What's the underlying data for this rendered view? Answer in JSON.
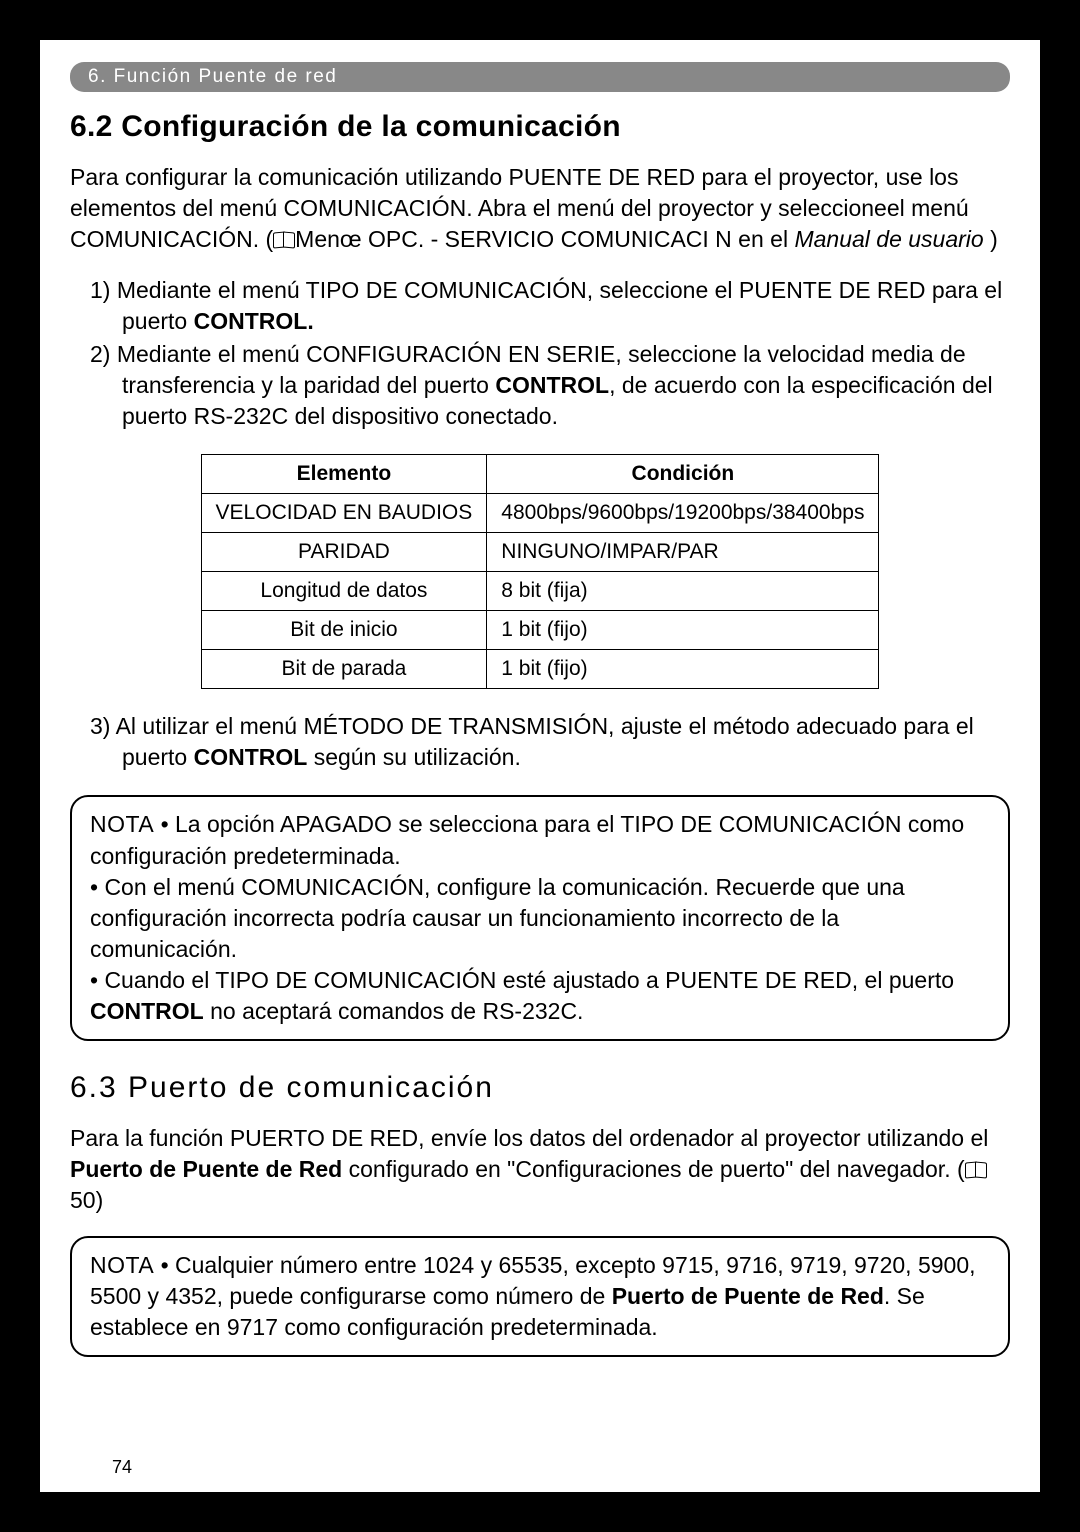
{
  "header": {
    "breadcrumb": "6. Función Puente de red"
  },
  "section62": {
    "title": "6.2 Configuración de la comunicación",
    "intro_before_icon": "Para configurar la comunicación utilizando PUENTE DE RED para el proyector, use los elementos del menú COMUNICACIÓN. Abra el menú del proyector y seleccioneel menú COMUNICACIÓN. (",
    "intro_after_icon": "Menœ OPC. - SERVICIO  COMUNICACI N en el ",
    "intro_manual": "Manual de usuario",
    "intro_close": "     )",
    "list": [
      {
        "num": "1)",
        "pre": "Mediante el menú TIPO DE COMUNICACIÓN, seleccione el PUENTE DE RED para el puerto ",
        "bold": "CONTROL.",
        "post": ""
      },
      {
        "num": "2)",
        "pre": "Mediante el menú CONFIGURACIÓN EN SERIE, seleccione la velocidad media de transferencia y la paridad del puerto ",
        "bold": "CONTROL",
        "post": ", de acuerdo con la especificación del puerto RS-232C del dispositivo conectado."
      }
    ],
    "table": {
      "head": [
        "Elemento",
        "Condición"
      ],
      "rows": [
        {
          "el": "VELOCIDAD EN BAUDIOS",
          "cond": "4800bps/9600bps/19200bps/38400bps",
          "el_align": "c",
          "cond_align": ""
        },
        {
          "el": "PARIDAD",
          "cond": "NINGUNO/IMPAR/PAR",
          "el_align": "c",
          "cond_align": ""
        },
        {
          "el": "Longitud de datos",
          "cond": "8 bit (fija)",
          "el_align": "c",
          "cond_align": ""
        },
        {
          "el": "Bit de inicio",
          "cond": "1 bit (fijo)",
          "el_align": "c",
          "cond_align": ""
        },
        {
          "el": "Bit de parada",
          "cond": "1 bit (fijo)",
          "el_align": "c",
          "cond_align": ""
        }
      ]
    },
    "item3": {
      "num": "3)",
      "pre": "Al utilizar el menú MÉTODO DE TRANSMISIÓN, ajuste el método adecuado para el puerto ",
      "bold": "CONTROL",
      "post": " según su utilización."
    }
  },
  "nota1": {
    "lead": "NOTA",
    "b1": "  • La opción APAGADO se selecciona para el TIPO DE COMUNICACIÓN como configuración predeterminada.",
    "b2": "• Con el menú COMUNICACIÓN, configure la comunicación. Recuerde que una configuración incorrecta podría causar un funcionamiento incorrecto de la comunicación.",
    "b3_pre": "• Cuando el TIPO DE COMUNICACIÓN esté ajustado a PUENTE DE RED, el puerto ",
    "b3_bold": "CONTROL",
    "b3_post": " no aceptará comandos de RS-232C."
  },
  "section63": {
    "title": "6.3 Puerto de comunicación",
    "p1_pre": "Para la función PUERTO DE RED, envíe los datos del ordenador al proyector utilizando el ",
    "p1_bold": "Puerto de Puente de Red",
    "p1_mid": " configurado en \"Configuraciones de puerto\" del navegador. (",
    "p1_ref": "50)"
  },
  "nota2": {
    "lead": "NOTA",
    "pre": "  • Cualquier número entre 1024 y 65535, excepto 9715, 9716, 9719, 9720, 5900, 5500 y 4352, puede configurarse como número de ",
    "bold": "Puerto de Puente de Red",
    "post": ". Se establece en 9717 como configuración predeterminada."
  },
  "page_num": "74"
}
